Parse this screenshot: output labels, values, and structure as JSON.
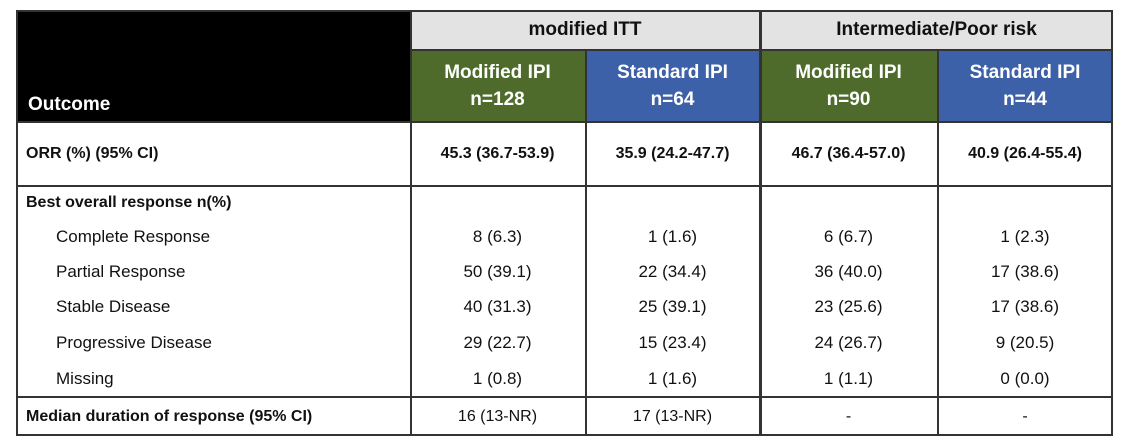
{
  "header": {
    "outcome": "Outcome",
    "groups": [
      "modified ITT",
      "Intermediate/Poor risk"
    ],
    "columns": [
      {
        "name": "Modified IPI",
        "n": "n=128"
      },
      {
        "name": "Standard IPI",
        "n": "n=64"
      },
      {
        "name": "Modified IPI",
        "n": "n=90"
      },
      {
        "name": "Standard IPI",
        "n": "n=44"
      }
    ]
  },
  "orr": {
    "label": "ORR (%) (95% CI)",
    "values": [
      "45.3 (36.7-53.9)",
      "35.9 (24.2-47.7)",
      "46.7 (36.4-57.0)",
      "40.9 (26.4-55.4)"
    ]
  },
  "best_response": {
    "title": "Best overall response n(%)",
    "rows": [
      {
        "label": "Complete Response",
        "values": [
          "8 (6.3)",
          "1 (1.6)",
          "6 (6.7)",
          "1 (2.3)"
        ]
      },
      {
        "label": "Partial Response",
        "values": [
          "50 (39.1)",
          "22 (34.4)",
          "36 (40.0)",
          "17 (38.6)"
        ]
      },
      {
        "label": "Stable Disease",
        "values": [
          "40 (31.3)",
          "25 (39.1)",
          "23 (25.6)",
          "17 (38.6)"
        ]
      },
      {
        "label": "Progressive Disease",
        "values": [
          "29 (22.7)",
          "15 (23.4)",
          "24 (26.7)",
          "9 (20.5)"
        ]
      },
      {
        "label": "Missing",
        "values": [
          "1 (0.8)",
          "1 (1.6)",
          "1 (1.1)",
          "0 (0.0)"
        ]
      }
    ]
  },
  "median": {
    "label": "Median duration of response (95% CI)",
    "values": [
      "16 (13-NR)",
      "17 (13-NR)",
      "-",
      "-"
    ]
  }
}
